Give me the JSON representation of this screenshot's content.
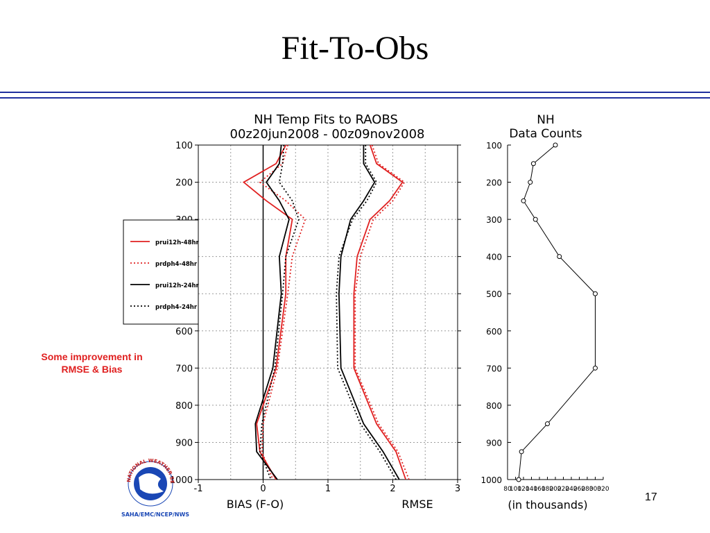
{
  "slide": {
    "title": "Fit-To-Obs",
    "note_line1": "Some improvement in",
    "note_line2": "RMSE & Bias",
    "page_number": "17",
    "logo_text": "SAHA/EMC/NCEP/NWS",
    "logo_ring_text": "NATIONAL WEATHER SERVICE",
    "rule_color": "#1f2f9f",
    "note_color": "#e02020"
  },
  "chart_data": [
    {
      "type": "line",
      "title_line1": "NH Temp Fits to RAOBS",
      "title_line2": "00z20jun2008 - 00z09nov2008",
      "xlabel_left": "BIAS (F-O)",
      "xlabel_right": "RMSE",
      "xlim": [
        -1,
        3
      ],
      "xticks": [
        "-1",
        "0",
        "1",
        "2",
        "3"
      ],
      "ylim": [
        100,
        1000
      ],
      "y_inverted": true,
      "yticks": [
        "100",
        "200",
        "300",
        "400",
        "500",
        "600",
        "700",
        "800",
        "900",
        "1000"
      ],
      "grid": true,
      "legend_position": "left-outside",
      "levels": [
        100,
        150,
        200,
        250,
        300,
        400,
        500,
        700,
        850,
        925,
        1000
      ],
      "series": [
        {
          "name": "prui12h-48hr",
          "metric": "bias",
          "color": "#e02020",
          "dash": "solid",
          "values": [
            0.35,
            0.2,
            -0.3,
            0.05,
            0.45,
            0.35,
            0.35,
            0.2,
            -0.1,
            -0.05,
            0.2
          ]
        },
        {
          "name": "prdph4-48hr",
          "metric": "bias",
          "color": "#e02020",
          "dash": "dotted",
          "values": [
            0.38,
            0.3,
            -0.05,
            0.35,
            0.65,
            0.45,
            0.38,
            0.22,
            0.0,
            -0.02,
            0.15
          ]
        },
        {
          "name": "prui12h-24hr",
          "metric": "bias",
          "color": "#000000",
          "dash": "solid",
          "values": [
            0.28,
            0.25,
            0.05,
            0.25,
            0.4,
            0.25,
            0.28,
            0.15,
            -0.12,
            -0.1,
            0.22
          ]
        },
        {
          "name": "prdph4-24hr",
          "metric": "bias",
          "color": "#000000",
          "dash": "dotted",
          "values": [
            0.32,
            0.3,
            0.25,
            0.45,
            0.55,
            0.35,
            0.3,
            0.18,
            -0.02,
            -0.05,
            0.12
          ]
        },
        {
          "name": "prui12h-48hr",
          "metric": "rmse",
          "color": "#e02020",
          "dash": "solid",
          "values": [
            1.65,
            1.75,
            2.15,
            1.95,
            1.65,
            1.45,
            1.4,
            1.4,
            1.75,
            2.05,
            2.2
          ]
        },
        {
          "name": "prdph4-48hr",
          "metric": "rmse",
          "color": "#e02020",
          "dash": "dotted",
          "values": [
            1.68,
            1.78,
            2.18,
            2.0,
            1.7,
            1.5,
            1.42,
            1.42,
            1.78,
            2.08,
            2.25
          ]
        },
        {
          "name": "prui12h-24hr",
          "metric": "rmse",
          "color": "#000000",
          "dash": "solid",
          "values": [
            1.55,
            1.55,
            1.72,
            1.55,
            1.35,
            1.2,
            1.17,
            1.2,
            1.55,
            1.85,
            2.1
          ]
        },
        {
          "name": "prdph4-24hr",
          "metric": "rmse",
          "color": "#000000",
          "dash": "dotted",
          "values": [
            1.58,
            1.58,
            1.75,
            1.6,
            1.38,
            1.17,
            1.13,
            1.15,
            1.5,
            1.8,
            2.05
          ]
        }
      ],
      "legend_labels": [
        "prui12h-48hr",
        "prdph4-48hr",
        "prui12h-24hr",
        "prdph4-24hr"
      ]
    },
    {
      "type": "line",
      "title_line1": "NH",
      "title_line2": "Data Counts",
      "xlabel": "(in thousands)",
      "xlim": [
        80,
        320
      ],
      "xticks": [
        "80",
        "100",
        "120",
        "140",
        "160",
        "180",
        "200",
        "220",
        "240",
        "260",
        "280",
        "300",
        "320"
      ],
      "ylim": [
        100,
        1000
      ],
      "y_inverted": true,
      "yticks": [
        "100",
        "200",
        "300",
        "400",
        "500",
        "600",
        "700",
        "800",
        "900",
        "1000"
      ],
      "grid": false,
      "series": [
        {
          "name": "",
          "color": "#000000",
          "marker": "circle",
          "levels": [
            100,
            150,
            200,
            250,
            300,
            400,
            500,
            700,
            850,
            925,
            1000
          ],
          "values": [
            200,
            145,
            137,
            120,
            150,
            210,
            300,
            300,
            180,
            115,
            108
          ]
        }
      ]
    }
  ]
}
